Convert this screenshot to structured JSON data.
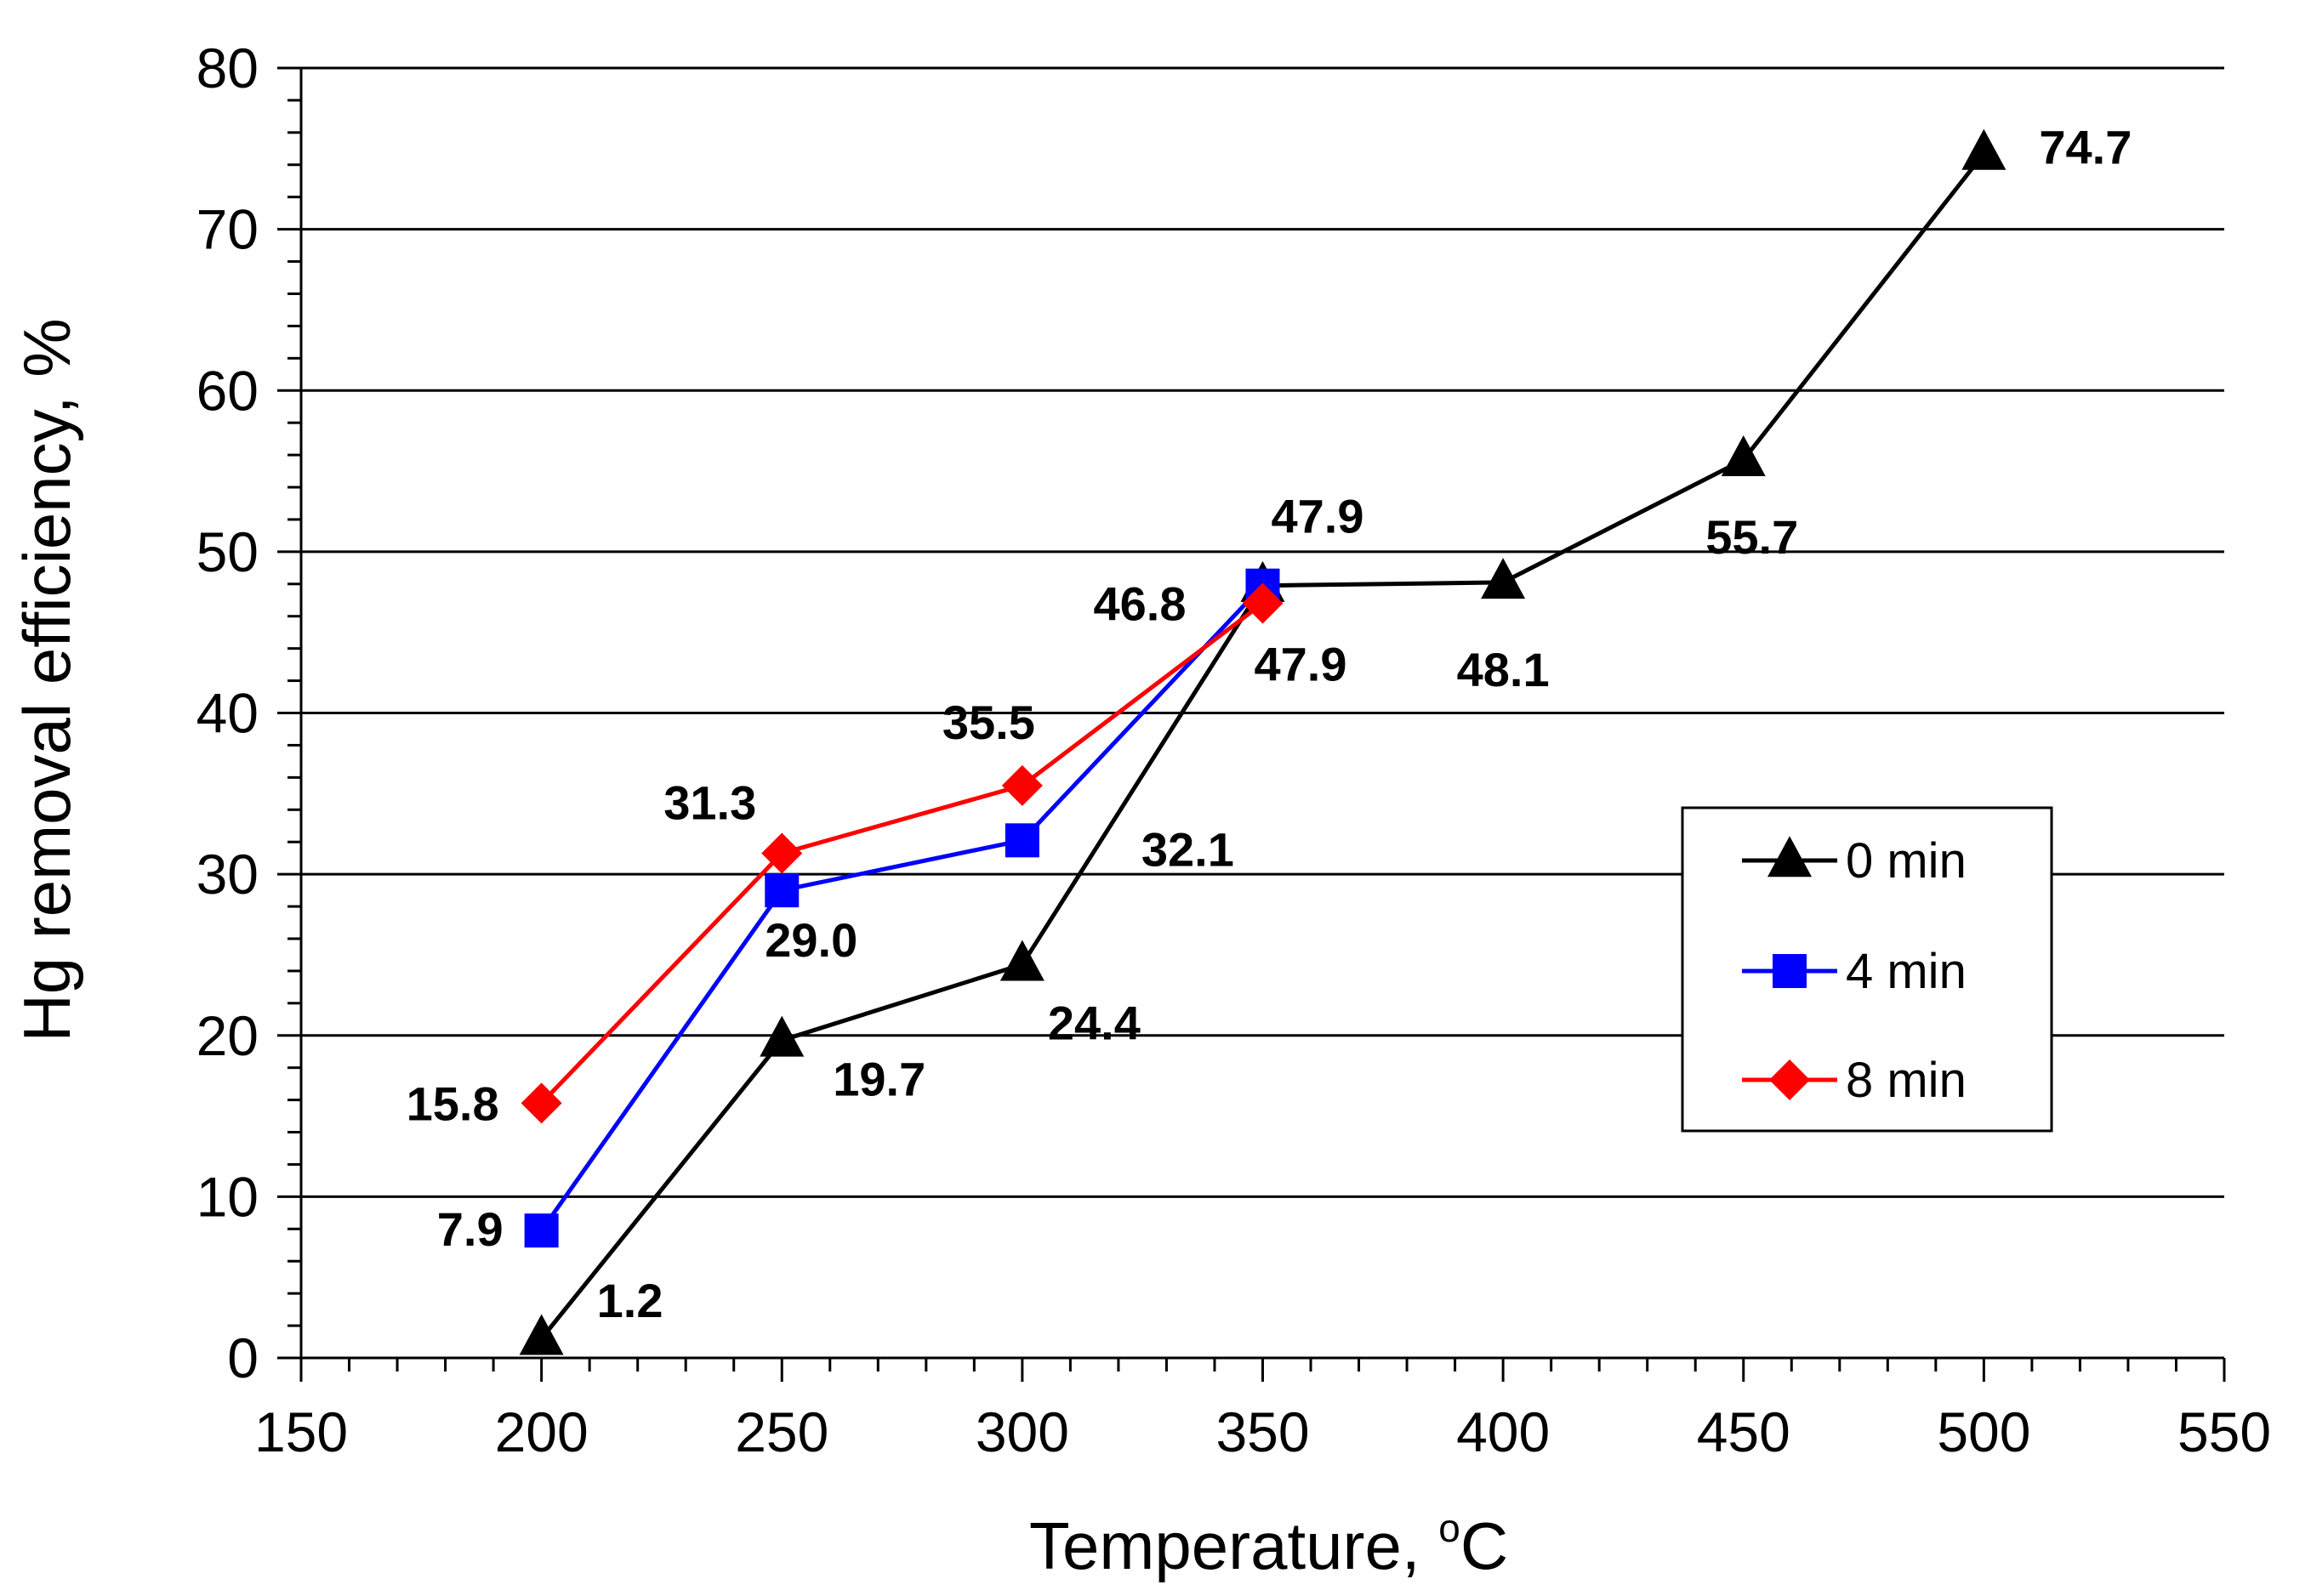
{
  "chart_data": {
    "type": "line",
    "title": "",
    "xlabel": "Temperature, °C",
    "xlabel_main": "Temperature, ",
    "xlabel_sup": "o",
    "xlabel_unit": "C",
    "ylabel": "Hg removal efficiency, %",
    "xlim": [
      150,
      550
    ],
    "ylim": [
      0,
      80
    ],
    "x_ticks": [
      150,
      200,
      250,
      300,
      350,
      400,
      450,
      500,
      550
    ],
    "y_ticks": [
      0,
      10,
      20,
      30,
      40,
      50,
      60,
      70,
      80
    ],
    "grid": "horizontal",
    "legend_position": "right",
    "series": [
      {
        "name": "0 min",
        "color": "#000000",
        "marker": "triangle",
        "x": [
          200,
          250,
          300,
          350,
          400,
          450,
          500
        ],
        "values": [
          1.2,
          19.7,
          24.4,
          47.9,
          48.1,
          55.7,
          74.7
        ],
        "labels": [
          "1.2",
          "19.7",
          "24.4",
          "47.9",
          "48.1",
          "55.7",
          "74.7"
        ]
      },
      {
        "name": "4 min",
        "color": "#0000ff",
        "marker": "square",
        "x": [
          200,
          250,
          300,
          350
        ],
        "values": [
          7.9,
          29.0,
          32.1,
          47.9
        ],
        "labels": [
          "7.9",
          "29.0",
          "32.1",
          "47.9"
        ]
      },
      {
        "name": "8 min",
        "color": "#ff0000",
        "marker": "diamond",
        "x": [
          200,
          250,
          300,
          350
        ],
        "values": [
          15.8,
          31.3,
          35.5,
          46.8
        ],
        "labels": [
          "15.8",
          "31.3",
          "35.5",
          "46.8"
        ]
      }
    ]
  }
}
